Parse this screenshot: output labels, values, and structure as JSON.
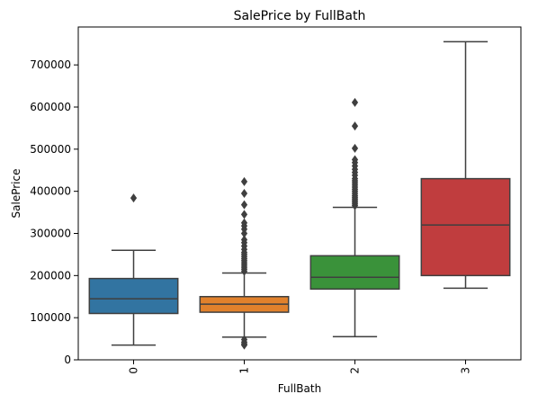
{
  "chart_data": {
    "type": "box",
    "title": "SalePrice by FullBath",
    "xlabel": "FullBath",
    "ylabel": "SalePrice",
    "categories": [
      "0",
      "1",
      "2",
      "3"
    ],
    "ylim": [
      0,
      790000
    ],
    "yticks": [
      0,
      100000,
      200000,
      300000,
      400000,
      500000,
      600000,
      700000
    ],
    "ytick_labels": [
      "0",
      "100000",
      "200000",
      "300000",
      "400000",
      "500000",
      "600000",
      "700000"
    ],
    "grid": false,
    "legend": "none",
    "series": [
      {
        "category": "0",
        "color": "#3274a1",
        "whisker_low": 35000,
        "q1": 110000,
        "median": 145000,
        "q3": 193000,
        "whisker_high": 260000,
        "outliers": [
          384000
        ]
      },
      {
        "category": "1",
        "color": "#e1812c",
        "whisker_low": 54000,
        "q1": 113000,
        "median": 132000,
        "q3": 150000,
        "whisker_high": 206000,
        "outliers": [
          35000,
          38000,
          42000,
          48000,
          210000,
          215000,
          220000,
          225000,
          230000,
          235000,
          240000,
          245000,
          250000,
          255000,
          262000,
          270000,
          278000,
          285000,
          300000,
          310000,
          318000,
          325000,
          345000,
          368000,
          395000,
          423000
        ]
      },
      {
        "category": "2",
        "color": "#3a923a",
        "whisker_low": 55000,
        "q1": 168000,
        "median": 196000,
        "q3": 247000,
        "whisker_high": 362000,
        "outliers": [
          366000,
          370000,
          374000,
          378000,
          382000,
          386000,
          390000,
          395000,
          400000,
          405000,
          410000,
          415000,
          420000,
          425000,
          430000,
          438000,
          445000,
          452000,
          460000,
          468000,
          475000,
          502000,
          555000,
          611000
        ]
      },
      {
        "category": "3",
        "color": "#c03d3e",
        "whisker_low": 170000,
        "q1": 200000,
        "median": 320000,
        "q3": 430000,
        "whisker_high": 755000,
        "outliers": []
      }
    ]
  }
}
